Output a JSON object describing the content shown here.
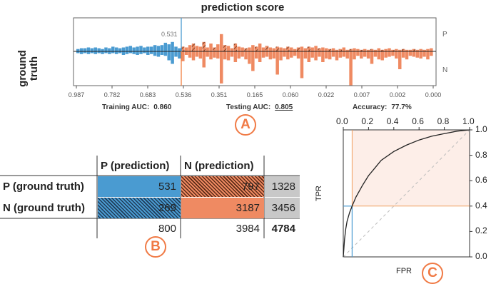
{
  "title": "prediction score",
  "ground_truth": {
    "line1": "ground",
    "line2": "truth"
  },
  "side_labels": {
    "top": "P",
    "bottom": "N"
  },
  "threshold_value": "0.531",
  "score_axis_ticks": [
    "0.987",
    "0.782",
    "0.683",
    "0.536",
    "0.351",
    "0.165",
    "0.060",
    "0.022",
    "0.007",
    "0.002",
    "0.000"
  ],
  "metrics": {
    "training_label": "Training AUC:",
    "training_value": "0.860",
    "testing_label": "Testing AUC:",
    "testing_value": "0.805",
    "accuracy_label": "Accuracy:",
    "accuracy_value": "77.7%"
  },
  "badges": {
    "a": "A",
    "b": "B",
    "c": "C"
  },
  "colors": {
    "positive": "#4a9bd1",
    "negative": "#ef8a62",
    "roc_fill": "#fdeee8",
    "total": "#c8c8c8"
  },
  "confusion_matrix": {
    "col_headers": [
      "P (prediction)",
      "N (prediction)"
    ],
    "row_headers": [
      "P (ground truth)",
      "N (ground truth)"
    ],
    "cells": [
      [
        "531",
        "797"
      ],
      [
        "269",
        "3187"
      ]
    ],
    "row_totals": [
      "1328",
      "3456"
    ],
    "col_totals": [
      "800",
      "3984"
    ],
    "grand_total": "4784"
  },
  "roc": {
    "x_ticks": [
      "0.0",
      "0.2",
      "0.4",
      "0.6",
      "0.8",
      "1.0"
    ],
    "y_ticks": [
      "1.0",
      "0.8",
      "0.6",
      "0.4",
      "0.2",
      "0.0"
    ],
    "xlabel": "FPR",
    "ylabel": "TPR",
    "threshold_point": {
      "fpr": 0.07,
      "tpr": 0.4
    },
    "curve": [
      [
        0,
        0
      ],
      [
        0.01,
        0.14
      ],
      [
        0.02,
        0.22
      ],
      [
        0.03,
        0.28
      ],
      [
        0.05,
        0.35
      ],
      [
        0.07,
        0.4
      ],
      [
        0.1,
        0.47
      ],
      [
        0.15,
        0.56
      ],
      [
        0.2,
        0.64
      ],
      [
        0.25,
        0.7
      ],
      [
        0.3,
        0.76
      ],
      [
        0.4,
        0.83
      ],
      [
        0.5,
        0.88
      ],
      [
        0.6,
        0.92
      ],
      [
        0.7,
        0.95
      ],
      [
        0.8,
        0.97
      ],
      [
        0.9,
        0.99
      ],
      [
        1,
        1
      ]
    ]
  },
  "chart_data": {
    "type": "bar",
    "title": "prediction score",
    "xlabel": "",
    "ylabel": "ground truth",
    "x_ticks": [
      "0.987",
      "0.782",
      "0.683",
      "0.536",
      "0.351",
      "0.165",
      "0.060",
      "0.022",
      "0.007",
      "0.002",
      "0.000"
    ],
    "threshold": "0.531",
    "series": [
      {
        "values": [
          3,
          4,
          4,
          5,
          4,
          5,
          4,
          3,
          5,
          4,
          6,
          5,
          4,
          5,
          6,
          7,
          5,
          6,
          7,
          5,
          6,
          6,
          8,
          7,
          8,
          11,
          9,
          12,
          6,
          4,
          6,
          5,
          8,
          10,
          7,
          6,
          12,
          5,
          10,
          5,
          9,
          22,
          8,
          7,
          4,
          10,
          6,
          5,
          4,
          5,
          8,
          6,
          10,
          5,
          7,
          5,
          4,
          6,
          5,
          4,
          6,
          5,
          3,
          5,
          6,
          4,
          6,
          5,
          7,
          4,
          5,
          4,
          3,
          4,
          2,
          3,
          5,
          2,
          3,
          4,
          3,
          2,
          3,
          2,
          3,
          2,
          4,
          2,
          3,
          4,
          2,
          3,
          2,
          3,
          2,
          2,
          3,
          2,
          3,
          2,
          3,
          4
        ]
      },
      {
        "values": [
          2,
          3,
          2,
          3,
          2,
          3,
          2,
          3,
          2,
          3,
          2,
          3,
          2,
          4,
          3,
          2,
          3,
          4,
          3,
          2,
          4,
          3,
          5,
          6,
          4,
          5,
          10,
          14,
          6,
          8,
          11,
          4,
          7,
          10,
          6,
          8,
          18,
          6,
          9,
          7,
          8,
          36,
          9,
          10,
          6,
          12,
          8,
          6,
          9,
          14,
          22,
          8,
          12,
          7,
          6,
          9,
          8,
          26,
          10,
          6,
          9,
          7,
          5,
          8,
          30,
          8,
          12,
          7,
          10,
          6,
          12,
          8,
          9,
          6,
          10,
          7,
          6,
          8,
          38,
          9,
          5,
          8,
          6,
          8,
          14,
          6,
          9,
          10,
          7,
          6,
          5,
          8,
          20,
          7,
          9,
          5,
          6,
          7,
          8,
          6,
          9,
          5,
          6,
          4,
          5,
          6
        ]
      }
    ]
  }
}
